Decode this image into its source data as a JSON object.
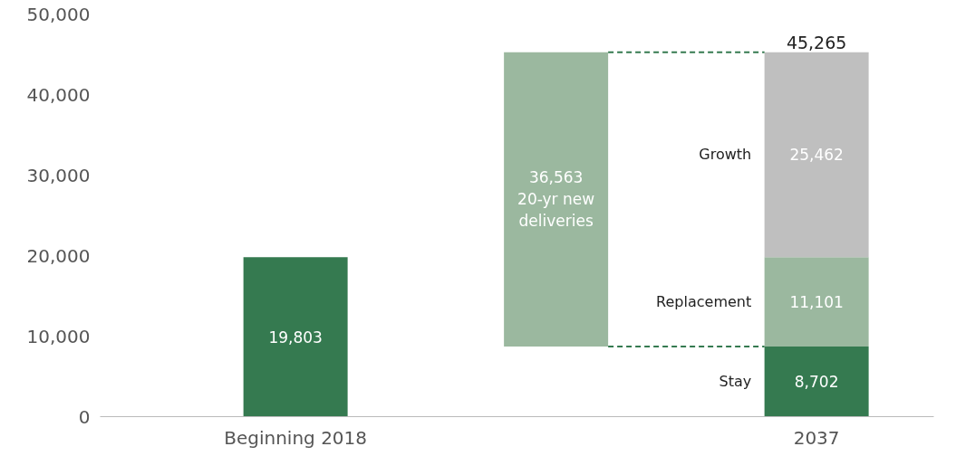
{
  "chart_data": {
    "type": "bar",
    "categories": [
      "Beginning 2018",
      null,
      "2037"
    ],
    "series": [
      {
        "color": "#357a50",
        "values": [
          19803,
          null,
          8702
        ],
        "base": [
          0,
          null,
          0
        ],
        "value_labels": [
          "19,803",
          null,
          "8,702"
        ]
      },
      {
        "color": "#9bb89f",
        "values": [
          null,
          36563,
          11101
        ],
        "base": [
          null,
          8702,
          8702
        ],
        "value_labels": [
          null,
          "36,563\n20-yr new\ndeliveries",
          "11,101"
        ]
      },
      {
        "color": "#bfbfbf",
        "values": [
          null,
          null,
          25462
        ],
        "base": [
          null,
          null,
          19803
        ],
        "value_labels": [
          null,
          null,
          "25,462"
        ]
      }
    ],
    "totals": [
      null,
      null,
      "45,265"
    ],
    "annotations": [
      "Growth",
      "Replacement",
      "Stay"
    ],
    "ref_lines": [
      {
        "axis": "y",
        "value": 45265,
        "color": "#357a50",
        "line_style": "dashed"
      },
      {
        "axis": "y",
        "value": 8702,
        "color": "#357a50",
        "line_style": "dashed"
      }
    ],
    "ylim": [
      0,
      50000
    ],
    "yticks": [
      {
        "value": 0,
        "label": "0"
      },
      {
        "value": 10000,
        "label": "10,000"
      },
      {
        "value": 20000,
        "label": "20,000"
      },
      {
        "value": 30000,
        "label": "30,000"
      },
      {
        "value": 40000,
        "label": "40,000"
      },
      {
        "value": 50000,
        "label": "50,000"
      }
    ]
  }
}
